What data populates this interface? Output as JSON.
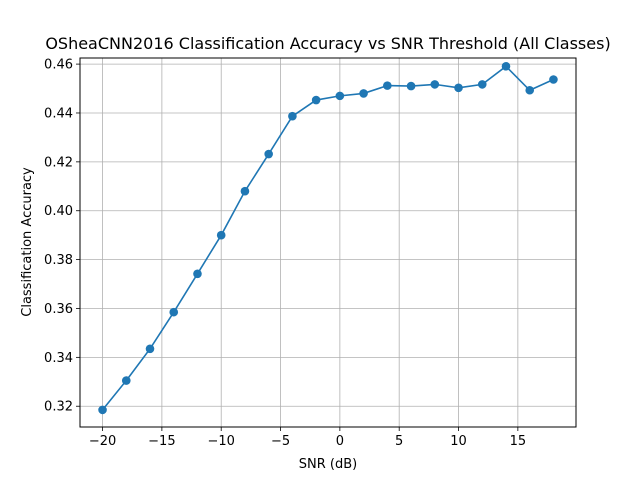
{
  "chart_data": {
    "type": "line",
    "title": "OSheaCNN2016 Classification Accuracy vs SNR Threshold (All Classes)",
    "xlabel": "SNR (dB)",
    "ylabel": "Classification Accuracy",
    "xlim": [
      -21.9,
      19.9
    ],
    "ylim": [
      0.3115,
      0.4625
    ],
    "xticks": [
      -20,
      -15,
      -10,
      -5,
      0,
      5,
      10,
      15
    ],
    "yticks": [
      0.32,
      0.34,
      0.36,
      0.38,
      0.4,
      0.42,
      0.44,
      0.46
    ],
    "xtick_labels": [
      "−20",
      "−15",
      "−10",
      "−5",
      "0",
      "5",
      "10",
      "15"
    ],
    "ytick_labels": [
      "0.32",
      "0.34",
      "0.36",
      "0.38",
      "0.40",
      "0.42",
      "0.44",
      "0.46"
    ],
    "grid": true,
    "color": "#1f77b4",
    "marker": "circle",
    "series": [
      {
        "x": [
          -20,
          -18,
          -16,
          -14,
          -12,
          -10,
          -8,
          -6,
          -4,
          -2,
          0,
          2,
          4,
          6,
          8,
          10,
          12,
          14,
          16,
          18
        ],
        "values": [
          0.3185,
          0.3305,
          0.3435,
          0.3585,
          0.3742,
          0.39,
          0.408,
          0.4232,
          0.4387,
          0.4453,
          0.447,
          0.448,
          0.4512,
          0.451,
          0.4517,
          0.4503,
          0.4517,
          0.4591,
          0.4493,
          0.4537
        ]
      }
    ]
  }
}
